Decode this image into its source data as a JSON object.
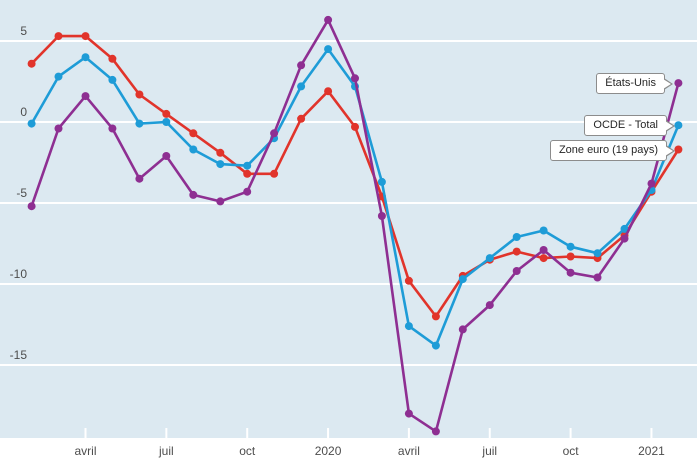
{
  "chart_data": {
    "type": "line",
    "title": "",
    "xlabel": "",
    "ylabel": "",
    "x_unit": "month",
    "n_points": 25,
    "x_tick_labels": [
      {
        "label": "avril",
        "index": 2
      },
      {
        "label": "juil",
        "index": 5
      },
      {
        "label": "oct",
        "index": 8
      },
      {
        "label": "2020",
        "index": 11
      },
      {
        "label": "avril",
        "index": 14
      },
      {
        "label": "juil",
        "index": 17
      },
      {
        "label": "oct",
        "index": 20
      },
      {
        "label": "2021",
        "index": 23
      }
    ],
    "y_ticks": [
      5,
      0,
      -5,
      -10,
      -15
    ],
    "ylim": [
      -19.6,
      7.5
    ],
    "grid": true,
    "legend_position": "right-callouts",
    "series": [
      {
        "name": "Zone euro (19 pays)",
        "color": "#e1342b",
        "values": [
          3.6,
          5.3,
          5.3,
          3.9,
          1.7,
          0.5,
          -0.7,
          -1.9,
          -3.2,
          -3.2,
          0.2,
          1.9,
          -0.3,
          -4.6,
          -9.8,
          -12.0,
          -9.5,
          -8.5,
          -8.0,
          -8.4,
          -8.3,
          -8.4,
          -7.0,
          -4.3,
          -1.7
        ]
      },
      {
        "name": "OCDE - Total",
        "color": "#1e9cd7",
        "values": [
          -0.1,
          2.8,
          4.0,
          2.6,
          -0.1,
          0.0,
          -1.7,
          -2.6,
          -2.7,
          -1.0,
          2.2,
          4.5,
          2.2,
          -3.7,
          -12.6,
          -13.8,
          -9.7,
          -8.4,
          -7.1,
          -6.7,
          -7.7,
          -8.1,
          -6.6,
          -4.2,
          -0.2
        ]
      },
      {
        "name": "États-Unis",
        "color": "#8e2f92",
        "values": [
          -5.2,
          -0.4,
          1.6,
          -0.4,
          -3.5,
          -2.1,
          -4.5,
          -4.9,
          -4.3,
          -0.7,
          3.5,
          6.3,
          2.7,
          -5.8,
          -18.0,
          -19.1,
          -12.8,
          -11.3,
          -9.2,
          -7.9,
          -9.3,
          -9.6,
          -7.2,
          -3.8,
          2.4
        ]
      }
    ]
  },
  "colors": {
    "plot_bg": "#dce9f1",
    "grid": "#ffffff",
    "axis_text": "#4d4d4d",
    "tick_mark": "#ffffff"
  }
}
